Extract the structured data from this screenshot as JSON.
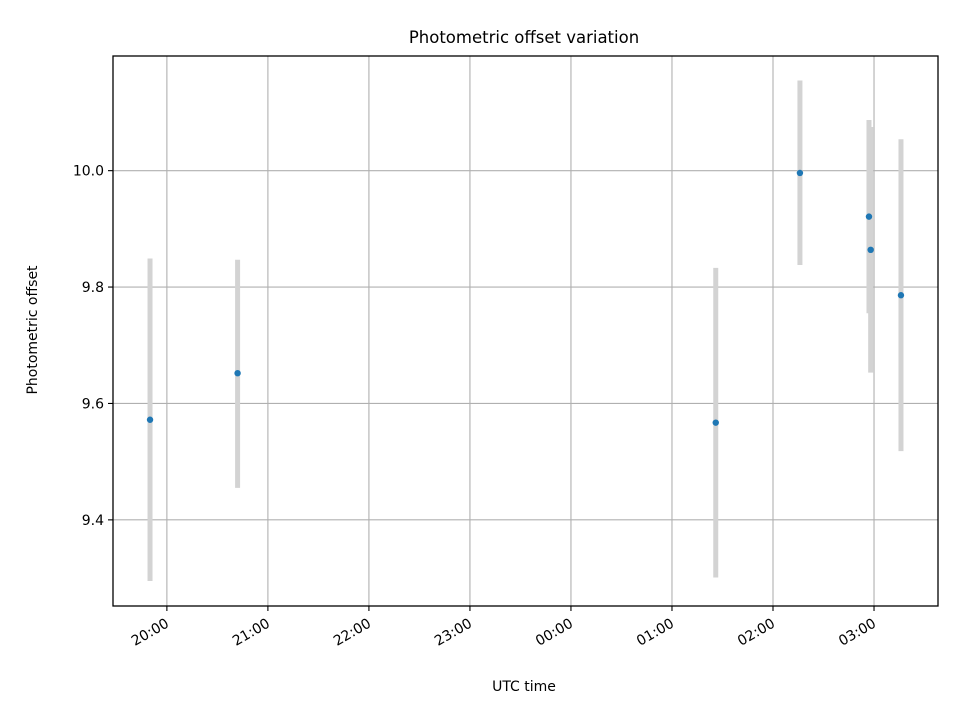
{
  "chart_data": {
    "type": "scatter",
    "title": "Photometric offset variation",
    "xlabel": "UTC time",
    "ylabel": "Photometric offset",
    "x_axis_type": "time",
    "x_range": [
      "19:28",
      "03:38"
    ],
    "ylim": [
      9.252,
      10.197
    ],
    "x_ticks": [
      "20:00",
      "21:00",
      "22:00",
      "23:00",
      "00:00",
      "01:00",
      "02:00",
      "03:00"
    ],
    "y_ticks": [
      "9.4",
      "9.6",
      "9.8",
      "10.0"
    ],
    "y_tick_values": [
      9.4,
      9.6,
      9.8,
      10.0
    ],
    "grid": true,
    "marker_color": "#1f77b4",
    "errorbar_color": "#d3d3d3",
    "points": [
      {
        "x": "19:50",
        "y": 9.572,
        "yerr_low": 9.295,
        "yerr_high": 9.849
      },
      {
        "x": "20:42",
        "y": 9.652,
        "yerr_low": 9.455,
        "yerr_high": 9.847
      },
      {
        "x": "01:26",
        "y": 9.567,
        "yerr_low": 9.301,
        "yerr_high": 9.833
      },
      {
        "x": "02:16",
        "y": 9.996,
        "yerr_low": 9.838,
        "yerr_high": 10.155
      },
      {
        "x": "02:57",
        "y": 9.921,
        "yerr_low": 9.755,
        "yerr_high": 10.087
      },
      {
        "x": "02:58",
        "y": 9.864,
        "yerr_low": 9.653,
        "yerr_high": 10.075
      },
      {
        "x": "03:16",
        "y": 9.786,
        "yerr_low": 9.518,
        "yerr_high": 10.054
      }
    ]
  }
}
